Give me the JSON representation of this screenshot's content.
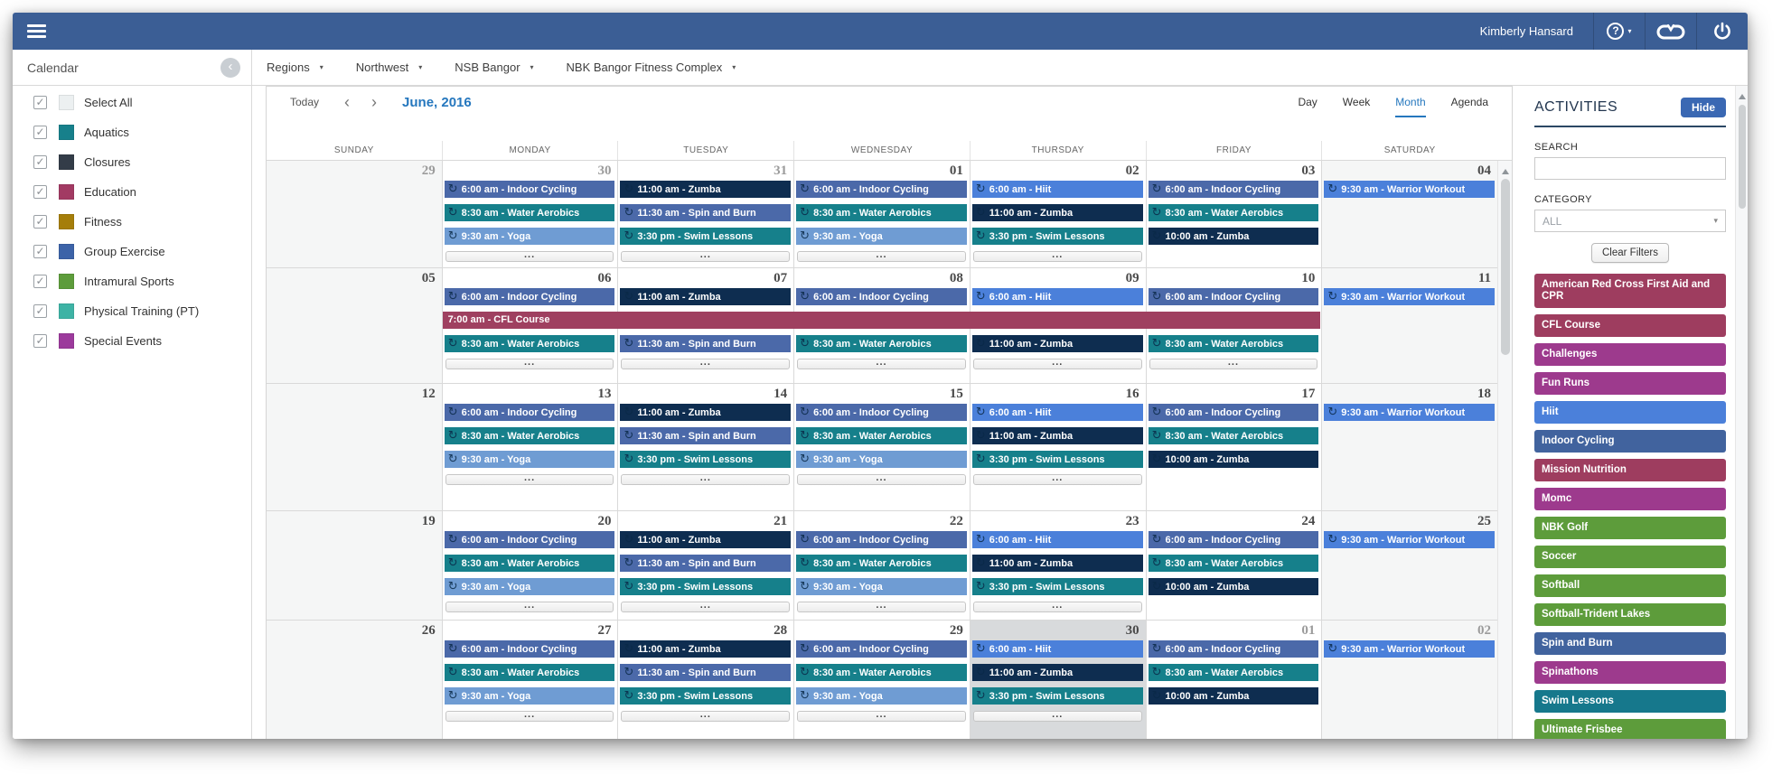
{
  "topbar": {
    "user": "Kimberly Hansard"
  },
  "breadcrumb": {
    "items": [
      "Regions",
      "Northwest",
      "NSB Bangor",
      "NBK Bangor Fitness Complex"
    ]
  },
  "icons": {
    "caret": "▾",
    "chev_left": "‹",
    "chev_right": "›",
    "collapse": "‹",
    "recurring": "↻",
    "check": "✓",
    "help_q": "?"
  },
  "sidebar": {
    "title": "Calendar",
    "items": [
      {
        "label": "Select All",
        "color": "#ecf0f1",
        "checked": true
      },
      {
        "label": "Aquatics",
        "color": "#17808b",
        "checked": true
      },
      {
        "label": "Closures",
        "color": "#333c48",
        "checked": true
      },
      {
        "label": "Education",
        "color": "#a23a63",
        "checked": true
      },
      {
        "label": "Fitness",
        "color": "#a57e0a",
        "checked": true
      },
      {
        "label": "Group Exercise",
        "color": "#3c63a8",
        "checked": true
      },
      {
        "label": "Intramural Sports",
        "color": "#5d9c3b",
        "checked": true
      },
      {
        "label": "Physical Training (PT)",
        "color": "#3eb3a5",
        "checked": true
      },
      {
        "label": "Special Events",
        "color": "#9c3a9c",
        "checked": true
      }
    ]
  },
  "toolbar": {
    "today_label": "Today",
    "month_label": "June, 2016",
    "views": [
      "Day",
      "Week",
      "Month",
      "Agenda"
    ],
    "active_view": "Month"
  },
  "colors": {
    "steel": "#4b69a9",
    "teal": "#16808b",
    "light": "#6f9cd3",
    "navy": "#0e2d50",
    "bright": "#4b80da",
    "maroon": "#9f4060"
  },
  "calendar": {
    "day_headers": [
      "SUNDAY",
      "MONDAY",
      "TUESDAY",
      "WEDNESDAY",
      "THURSDAY",
      "FRIDAY",
      "SATURDAY"
    ],
    "more_label": "...",
    "span_event": {
      "label": "7:00 am - CFL Course",
      "color": "maroon",
      "week_index": 1,
      "start_col": 1,
      "span": 5
    },
    "weeks": [
      {
        "cells": [
          {
            "d": "29",
            "o": 1,
            "w": 1
          },
          {
            "d": "30",
            "o": 1,
            "e": [
              [
                "6:00 am - Indoor Cycling",
                "steel"
              ],
              [
                "8:30 am - Water Aerobics",
                "teal"
              ],
              [
                "9:30 am - Yoga",
                "light"
              ]
            ],
            "m": 1
          },
          {
            "d": "31",
            "o": 1,
            "e": [
              [
                "11:00 am - Zumba",
                "navy"
              ],
              [
                "11:30 am - Spin and Burn",
                "steel"
              ],
              [
                "3:30 pm - Swim Lessons",
                "teal"
              ]
            ],
            "m": 1
          },
          {
            "d": "01",
            "e": [
              [
                "6:00 am - Indoor Cycling",
                "steel"
              ],
              [
                "8:30 am - Water Aerobics",
                "teal"
              ],
              [
                "9:30 am - Yoga",
                "light"
              ]
            ],
            "m": 1
          },
          {
            "d": "02",
            "e": [
              [
                "6:00 am - Hiit",
                "bright"
              ],
              [
                "11:00 am - Zumba",
                "navy"
              ],
              [
                "3:30 pm - Swim Lessons",
                "teal"
              ]
            ],
            "m": 1
          },
          {
            "d": "03",
            "e": [
              [
                "6:00 am - Indoor Cycling",
                "steel"
              ],
              [
                "8:30 am - Water Aerobics",
                "teal"
              ],
              [
                "10:00 am - Zumba",
                "navy"
              ]
            ]
          },
          {
            "d": "04",
            "w": 1,
            "e": [
              [
                "9:30 am - Warrior Workout",
                "bright"
              ]
            ]
          }
        ]
      },
      {
        "cells": [
          {
            "d": "05",
            "w": 1
          },
          {
            "d": "06",
            "e": [
              [
                "6:00 am - Indoor Cycling",
                "steel"
              ],
              null,
              [
                "8:30 am - Water Aerobics",
                "teal"
              ]
            ],
            "m": 1
          },
          {
            "d": "07",
            "e": [
              [
                "11:00 am - Zumba",
                "navy"
              ],
              null,
              [
                "11:30 am - Spin and Burn",
                "steel"
              ]
            ],
            "m": 1
          },
          {
            "d": "08",
            "e": [
              [
                "6:00 am - Indoor Cycling",
                "steel"
              ],
              null,
              [
                "8:30 am - Water Aerobics",
                "teal"
              ]
            ],
            "m": 1
          },
          {
            "d": "09",
            "e": [
              [
                "6:00 am - Hiit",
                "bright"
              ],
              null,
              [
                "11:00 am - Zumba",
                "navy"
              ]
            ],
            "m": 1
          },
          {
            "d": "10",
            "e": [
              [
                "6:00 am - Indoor Cycling",
                "steel"
              ],
              null,
              [
                "8:30 am - Water Aerobics",
                "teal"
              ]
            ],
            "m": 1
          },
          {
            "d": "11",
            "w": 1,
            "e": [
              [
                "9:30 am - Warrior Workout",
                "bright"
              ]
            ]
          }
        ]
      },
      {
        "cells": [
          {
            "d": "12",
            "w": 1
          },
          {
            "d": "13",
            "e": [
              [
                "6:00 am - Indoor Cycling",
                "steel"
              ],
              [
                "8:30 am - Water Aerobics",
                "teal"
              ],
              [
                "9:30 am - Yoga",
                "light"
              ]
            ],
            "m": 1
          },
          {
            "d": "14",
            "e": [
              [
                "11:00 am - Zumba",
                "navy"
              ],
              [
                "11:30 am - Spin and Burn",
                "steel"
              ],
              [
                "3:30 pm - Swim Lessons",
                "teal"
              ]
            ],
            "m": 1
          },
          {
            "d": "15",
            "e": [
              [
                "6:00 am - Indoor Cycling",
                "steel"
              ],
              [
                "8:30 am - Water Aerobics",
                "teal"
              ],
              [
                "9:30 am - Yoga",
                "light"
              ]
            ],
            "m": 1
          },
          {
            "d": "16",
            "e": [
              [
                "6:00 am - Hiit",
                "bright"
              ],
              [
                "11:00 am - Zumba",
                "navy"
              ],
              [
                "3:30 pm - Swim Lessons",
                "teal"
              ]
            ],
            "m": 1
          },
          {
            "d": "17",
            "e": [
              [
                "6:00 am - Indoor Cycling",
                "steel"
              ],
              [
                "8:30 am - Water Aerobics",
                "teal"
              ],
              [
                "10:00 am - Zumba",
                "navy"
              ]
            ]
          },
          {
            "d": "18",
            "w": 1,
            "e": [
              [
                "9:30 am - Warrior Workout",
                "bright"
              ]
            ]
          }
        ]
      },
      {
        "cells": [
          {
            "d": "19",
            "w": 1
          },
          {
            "d": "20",
            "e": [
              [
                "6:00 am - Indoor Cycling",
                "steel"
              ],
              [
                "8:30 am - Water Aerobics",
                "teal"
              ],
              [
                "9:30 am - Yoga",
                "light"
              ]
            ],
            "m": 1
          },
          {
            "d": "21",
            "e": [
              [
                "11:00 am - Zumba",
                "navy"
              ],
              [
                "11:30 am - Spin and Burn",
                "steel"
              ],
              [
                "3:30 pm - Swim Lessons",
                "teal"
              ]
            ],
            "m": 1
          },
          {
            "d": "22",
            "e": [
              [
                "6:00 am - Indoor Cycling",
                "steel"
              ],
              [
                "8:30 am - Water Aerobics",
                "teal"
              ],
              [
                "9:30 am - Yoga",
                "light"
              ]
            ],
            "m": 1
          },
          {
            "d": "23",
            "e": [
              [
                "6:00 am - Hiit",
                "bright"
              ],
              [
                "11:00 am - Zumba",
                "navy"
              ],
              [
                "3:30 pm - Swim Lessons",
                "teal"
              ]
            ],
            "m": 1
          },
          {
            "d": "24",
            "e": [
              [
                "6:00 am - Indoor Cycling",
                "steel"
              ],
              [
                "8:30 am - Water Aerobics",
                "teal"
              ],
              [
                "10:00 am - Zumba",
                "navy"
              ]
            ]
          },
          {
            "d": "25",
            "w": 1,
            "e": [
              [
                "9:30 am - Warrior Workout",
                "bright"
              ]
            ]
          }
        ]
      },
      {
        "cells": [
          {
            "d": "26",
            "w": 1
          },
          {
            "d": "27",
            "e": [
              [
                "6:00 am - Indoor Cycling",
                "steel"
              ],
              [
                "8:30 am - Water Aerobics",
                "teal"
              ],
              [
                "9:30 am - Yoga",
                "light"
              ]
            ],
            "m": 1
          },
          {
            "d": "28",
            "e": [
              [
                "11:00 am - Zumba",
                "navy"
              ],
              [
                "11:30 am - Spin and Burn",
                "steel"
              ],
              [
                "3:30 pm - Swim Lessons",
                "teal"
              ]
            ],
            "m": 1
          },
          {
            "d": "29",
            "e": [
              [
                "6:00 am - Indoor Cycling",
                "steel"
              ],
              [
                "8:30 am - Water Aerobics",
                "teal"
              ],
              [
                "9:30 am - Yoga",
                "light"
              ]
            ],
            "m": 1
          },
          {
            "d": "30",
            "t": 1,
            "e": [
              [
                "6:00 am - Hiit",
                "bright"
              ],
              [
                "11:00 am - Zumba",
                "navy"
              ],
              [
                "3:30 pm - Swim Lessons",
                "teal"
              ]
            ],
            "m": 1
          },
          {
            "d": "01",
            "o": 1,
            "e": [
              [
                "6:00 am - Indoor Cycling",
                "steel"
              ],
              [
                "8:30 am - Water Aerobics",
                "teal"
              ],
              [
                "10:00 am - Zumba",
                "navy"
              ]
            ]
          },
          {
            "d": "02",
            "o": 1,
            "w": 1,
            "e": [
              [
                "9:30 am - Warrior Workout",
                "bright"
              ]
            ]
          }
        ]
      }
    ]
  },
  "activities": {
    "title": "ACTIVITIES",
    "hide_label": "Hide",
    "search_label": "SEARCH",
    "search_value": "",
    "category_label": "CATEGORY",
    "category_value": "ALL",
    "clear_label": "Clear Filters",
    "buttons": [
      {
        "label": "American Red Cross First Aid and CPR",
        "color": "#9e3d5f"
      },
      {
        "label": "CFL Course",
        "color": "#9e3d5f"
      },
      {
        "label": "Challenges",
        "color": "#9d3a8d"
      },
      {
        "label": "Fun Runs",
        "color": "#9d3a8d"
      },
      {
        "label": "Hiit",
        "color": "#4b80da"
      },
      {
        "label": "Indoor Cycling",
        "color": "#41639e"
      },
      {
        "label": "Mission Nutrition",
        "color": "#9e3d5f"
      },
      {
        "label": "Momc",
        "color": "#9d3a8d"
      },
      {
        "label": "NBK Golf",
        "color": "#5d9c3b"
      },
      {
        "label": "Soccer",
        "color": "#5d9c3b"
      },
      {
        "label": "Softball",
        "color": "#5d9c3b"
      },
      {
        "label": "Softball-Trident Lakes",
        "color": "#5d9c3b"
      },
      {
        "label": "Spin and Burn",
        "color": "#41639e"
      },
      {
        "label": "Spinathons",
        "color": "#9d3a8d"
      },
      {
        "label": "Swim Lessons",
        "color": "#16788c"
      },
      {
        "label": "Ultimate Frisbee",
        "color": "#5d9c3b"
      },
      {
        "label": "",
        "color": "#5d9c3b"
      }
    ]
  }
}
